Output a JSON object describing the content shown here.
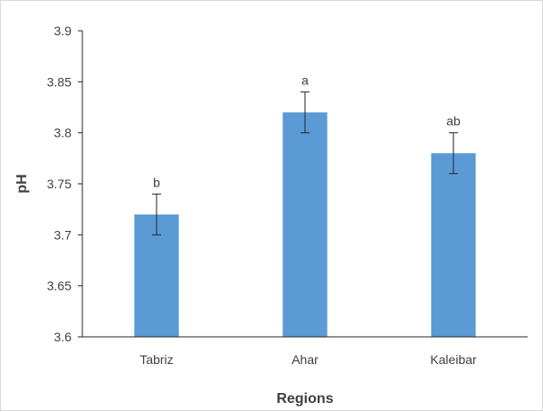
{
  "chart_data": {
    "type": "bar",
    "title": "",
    "xlabel": "Regions",
    "ylabel": "pH",
    "categories": [
      "Tabriz",
      "Ahar",
      "Kaleibar"
    ],
    "values": [
      3.72,
      3.82,
      3.78
    ],
    "error": [
      0.02,
      0.02,
      0.02
    ],
    "significance_labels": [
      "b",
      "a",
      "ab"
    ],
    "ylim": [
      3.6,
      3.9
    ],
    "yticks": [
      "3.6",
      "3.65",
      "3.7",
      "3.75",
      "3.8",
      "3.85",
      "3.9"
    ],
    "grid": false,
    "legend": "none",
    "bar_color": "#5b9bd5",
    "error_bar_color": "#262626",
    "axis_color": "#262626",
    "text_color": "#404040"
  }
}
